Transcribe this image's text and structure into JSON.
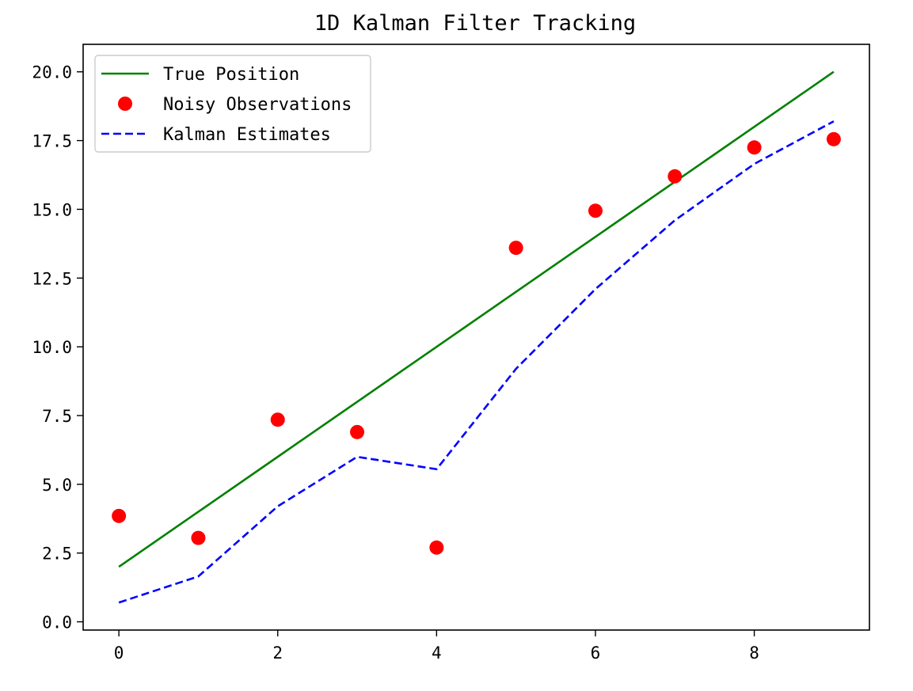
{
  "chart_data": {
    "type": "line",
    "title": "1D Kalman Filter Tracking",
    "xlabel": "",
    "ylabel": "",
    "xlim": [
      -0.45,
      9.45
    ],
    "ylim": [
      -0.3,
      21.0
    ],
    "xticks": [
      0,
      2,
      4,
      6,
      8
    ],
    "yticks": [
      0.0,
      2.5,
      5.0,
      7.5,
      10.0,
      12.5,
      15.0,
      17.5,
      20.0
    ],
    "xtick_labels": [
      "0",
      "2",
      "4",
      "6",
      "8"
    ],
    "ytick_labels": [
      "0.0",
      "2.5",
      "5.0",
      "7.5",
      "10.0",
      "12.5",
      "15.0",
      "17.5",
      "20.0"
    ],
    "grid": false,
    "legend_position": "top-left",
    "x": [
      0,
      1,
      2,
      3,
      4,
      5,
      6,
      7,
      8,
      9
    ],
    "series": [
      {
        "name": "True Position",
        "style": "line",
        "color": "#008000",
        "values": [
          2,
          4,
          6,
          8,
          10,
          12,
          14,
          16,
          18,
          20
        ]
      },
      {
        "name": "Noisy Observations",
        "style": "markers",
        "color": "#ff0000",
        "values": [
          3.85,
          3.05,
          7.35,
          6.9,
          2.7,
          13.6,
          14.95,
          16.2,
          17.25,
          17.55
        ]
      },
      {
        "name": "Kalman Estimates",
        "style": "dashed",
        "color": "#0000ff",
        "values": [
          0.7,
          1.65,
          4.2,
          6.0,
          5.55,
          9.2,
          12.1,
          14.6,
          16.65,
          18.2
        ]
      }
    ]
  }
}
